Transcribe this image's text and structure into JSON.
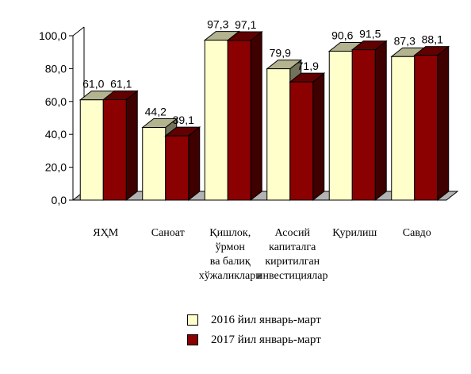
{
  "chart_data": {
    "type": "bar",
    "style": "3d-clustered-column",
    "categories": [
      "ЯҲМ",
      "Саноат",
      "Қишлок, ўрмон ва балиқ хўжаликлари",
      "Асосий капиталга киритилган инвестициялар",
      "Қурилиш",
      "Савдо"
    ],
    "category_lines": [
      [
        "ЯҲМ"
      ],
      [
        "Саноат"
      ],
      [
        "Қишлок,",
        "ўрмон",
        "ва балиқ",
        "хўжаликлари"
      ],
      [
        "Асосий",
        "капиталга",
        "киритилган",
        "инвестициялар"
      ],
      [
        "Қурилиш"
      ],
      [
        "Савдо"
      ]
    ],
    "series": [
      {
        "name": "2016 йил январь-март",
        "values": [
          61.0,
          44.2,
          97.3,
          79.9,
          90.6,
          87.3
        ],
        "labels": [
          "61,0",
          "44,2",
          "97,3",
          "79,9",
          "90,6",
          "87,3"
        ],
        "color": "#FFFFCC"
      },
      {
        "name": "2017 йил январь-март",
        "values": [
          61.1,
          39.1,
          97.1,
          71.9,
          91.5,
          88.1
        ],
        "labels": [
          "61,1",
          "39,1",
          "97,1",
          "71,9",
          "91,5",
          "88,1"
        ],
        "color": "#8B0000"
      }
    ],
    "yticks": [
      "0,0",
      "20,0",
      "40,0",
      "60,0",
      "80,0",
      "100,0"
    ],
    "ylim": [
      0,
      100
    ],
    "grid": false,
    "legend_position": "bottom-center"
  }
}
